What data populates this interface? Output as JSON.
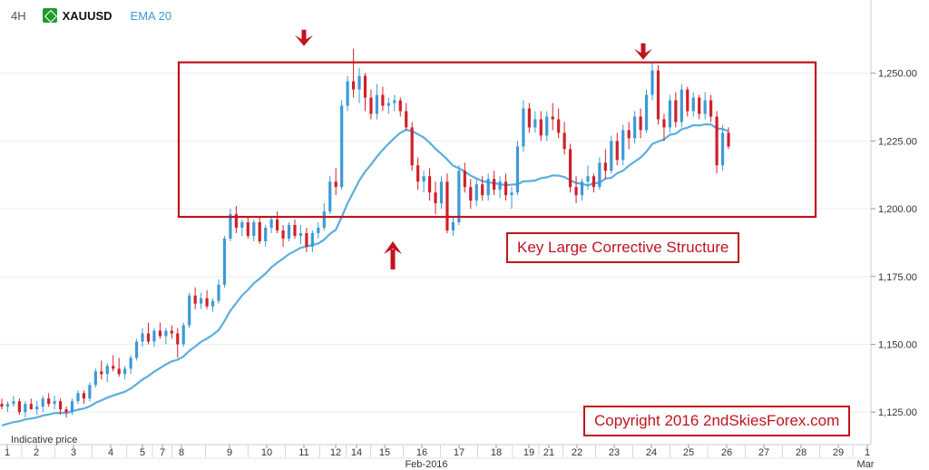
{
  "header": {
    "timeframe": "4H",
    "symbol": "XAUUSD",
    "indicator": "EMA 20"
  },
  "annotations": {
    "box_label": "Key Large Corrective Structure",
    "copyright": "Copyright 2016 2ndSkiesForex.com",
    "indicative": "Indicative price"
  },
  "colors": {
    "bull": "#3c9ad8",
    "bear": "#d0202b",
    "ema": "#5aaedf",
    "box": "#c0141c",
    "arrow": "#c0141c",
    "grid": "#eeeeee"
  },
  "chart_data": {
    "type": "candlestick",
    "y_ticks": [
      1125,
      1150,
      1175,
      1200,
      1225,
      1250
    ],
    "y_tick_labels": [
      "1,125.00",
      "1,150.00",
      "1,175.00",
      "1,200.00",
      "1,225.00",
      "1,250.00"
    ],
    "ylim": [
      1113,
      1277
    ],
    "x_ticks": [
      "1",
      "2",
      "3",
      "4",
      "5",
      "7",
      "8",
      "9",
      "10",
      "11",
      "12",
      "14",
      "15",
      "16",
      "17",
      "18",
      "19",
      "21",
      "22",
      "23",
      "24",
      "25",
      "26",
      "27",
      "28",
      "29",
      "1"
    ],
    "x_month_labels": [
      "Feb-2016",
      "Mar"
    ],
    "box_price_range": [
      1197,
      1254
    ],
    "arrows": [
      {
        "direction": "down",
        "price": 1258,
        "x_label": "11"
      },
      {
        "direction": "up",
        "price": 1190,
        "x_label": "15"
      },
      {
        "direction": "down",
        "price": 1253,
        "x_label": "24"
      }
    ],
    "candles": [
      [
        1128,
        1130,
        1126,
        1127
      ],
      [
        1127,
        1129,
        1125,
        1128
      ],
      [
        1128,
        1131,
        1127,
        1129
      ],
      [
        1129,
        1130,
        1124,
        1125
      ],
      [
        1125,
        1129,
        1123,
        1128
      ],
      [
        1128,
        1130,
        1126,
        1126
      ],
      [
        1126,
        1129,
        1124,
        1127
      ],
      [
        1127,
        1131,
        1125,
        1130
      ],
      [
        1130,
        1132,
        1127,
        1128
      ],
      [
        1128,
        1131,
        1126,
        1129
      ],
      [
        1129,
        1130,
        1124,
        1126
      ],
      [
        1126,
        1127,
        1123,
        1125
      ],
      [
        1125,
        1130,
        1124,
        1129
      ],
      [
        1129,
        1133,
        1128,
        1132
      ],
      [
        1132,
        1133,
        1128,
        1130
      ],
      [
        1130,
        1136,
        1129,
        1135
      ],
      [
        1135,
        1141,
        1134,
        1140
      ],
      [
        1140,
        1144,
        1137,
        1139
      ],
      [
        1139,
        1143,
        1136,
        1142
      ],
      [
        1142,
        1146,
        1140,
        1141
      ],
      [
        1141,
        1145,
        1138,
        1139
      ],
      [
        1139,
        1142,
        1137,
        1141
      ],
      [
        1141,
        1146,
        1139,
        1145
      ],
      [
        1145,
        1152,
        1144,
        1151
      ],
      [
        1151,
        1156,
        1149,
        1154
      ],
      [
        1154,
        1158,
        1150,
        1151
      ],
      [
        1151,
        1156,
        1149,
        1155
      ],
      [
        1155,
        1158,
        1152,
        1153
      ],
      [
        1153,
        1156,
        1150,
        1155
      ],
      [
        1155,
        1157,
        1152,
        1154
      ],
      [
        1154,
        1156,
        1145,
        1150
      ],
      [
        1150,
        1158,
        1149,
        1157
      ],
      [
        1157,
        1169,
        1156,
        1168
      ],
      [
        1168,
        1171,
        1163,
        1165
      ],
      [
        1165,
        1169,
        1163,
        1167
      ],
      [
        1167,
        1170,
        1163,
        1164
      ],
      [
        1164,
        1167,
        1162,
        1166
      ],
      [
        1166,
        1174,
        1165,
        1172
      ],
      [
        1172,
        1190,
        1171,
        1189
      ],
      [
        1189,
        1200,
        1188,
        1198
      ],
      [
        1198,
        1201,
        1191,
        1193
      ],
      [
        1193,
        1196,
        1190,
        1195
      ],
      [
        1195,
        1197,
        1189,
        1190
      ],
      [
        1190,
        1196,
        1188,
        1195
      ],
      [
        1195,
        1197,
        1187,
        1188
      ],
      [
        1188,
        1194,
        1186,
        1193
      ],
      [
        1193,
        1197,
        1191,
        1196
      ],
      [
        1196,
        1199,
        1191,
        1192
      ],
      [
        1192,
        1194,
        1186,
        1189
      ],
      [
        1189,
        1195,
        1188,
        1194
      ],
      [
        1194,
        1196,
        1189,
        1190
      ],
      [
        1190,
        1194,
        1187,
        1191
      ],
      [
        1191,
        1193,
        1184,
        1186
      ],
      [
        1186,
        1192,
        1184,
        1191
      ],
      [
        1191,
        1195,
        1189,
        1193
      ],
      [
        1193,
        1202,
        1192,
        1199
      ],
      [
        1199,
        1212,
        1198,
        1210
      ],
      [
        1210,
        1215,
        1205,
        1208
      ],
      [
        1208,
        1240,
        1207,
        1238
      ],
      [
        1238,
        1249,
        1236,
        1247
      ],
      [
        1247,
        1259,
        1241,
        1244
      ],
      [
        1244,
        1252,
        1239,
        1249
      ],
      [
        1249,
        1250,
        1236,
        1241
      ],
      [
        1241,
        1244,
        1233,
        1235
      ],
      [
        1235,
        1246,
        1233,
        1242
      ],
      [
        1242,
        1245,
        1236,
        1238
      ],
      [
        1238,
        1241,
        1235,
        1239
      ],
      [
        1239,
        1242,
        1236,
        1240
      ],
      [
        1240,
        1241,
        1234,
        1236
      ],
      [
        1236,
        1239,
        1229,
        1230
      ],
      [
        1230,
        1232,
        1214,
        1216
      ],
      [
        1216,
        1219,
        1207,
        1210
      ],
      [
        1210,
        1214,
        1206,
        1212
      ],
      [
        1212,
        1215,
        1203,
        1206
      ],
      [
        1206,
        1210,
        1198,
        1202
      ],
      [
        1202,
        1212,
        1200,
        1210
      ],
      [
        1210,
        1213,
        1191,
        1192
      ],
      [
        1192,
        1197,
        1190,
        1195
      ],
      [
        1195,
        1216,
        1194,
        1214
      ],
      [
        1214,
        1217,
        1206,
        1208
      ],
      [
        1208,
        1211,
        1200,
        1203
      ],
      [
        1203,
        1211,
        1201,
        1209
      ],
      [
        1209,
        1212,
        1203,
        1205
      ],
      [
        1205,
        1213,
        1203,
        1211
      ],
      [
        1211,
        1214,
        1205,
        1207
      ],
      [
        1207,
        1212,
        1204,
        1210
      ],
      [
        1210,
        1213,
        1203,
        1205
      ],
      [
        1205,
        1208,
        1200,
        1206
      ],
      [
        1206,
        1225,
        1205,
        1223
      ],
      [
        1223,
        1240,
        1221,
        1237
      ],
      [
        1237,
        1239,
        1228,
        1230
      ],
      [
        1230,
        1236,
        1228,
        1233
      ],
      [
        1233,
        1236,
        1225,
        1227
      ],
      [
        1227,
        1236,
        1225,
        1234
      ],
      [
        1234,
        1239,
        1229,
        1233
      ],
      [
        1233,
        1237,
        1226,
        1228
      ],
      [
        1228,
        1232,
        1220,
        1222
      ],
      [
        1222,
        1224,
        1206,
        1208
      ],
      [
        1208,
        1212,
        1202,
        1205
      ],
      [
        1205,
        1211,
        1203,
        1210
      ],
      [
        1210,
        1216,
        1207,
        1212
      ],
      [
        1212,
        1213,
        1206,
        1208
      ],
      [
        1208,
        1219,
        1207,
        1217
      ],
      [
        1217,
        1222,
        1211,
        1214
      ],
      [
        1214,
        1227,
        1213,
        1225
      ],
      [
        1225,
        1228,
        1216,
        1218
      ],
      [
        1218,
        1231,
        1216,
        1229
      ],
      [
        1229,
        1232,
        1222,
        1226
      ],
      [
        1226,
        1236,
        1224,
        1234
      ],
      [
        1234,
        1237,
        1226,
        1229
      ],
      [
        1229,
        1244,
        1228,
        1242
      ],
      [
        1242,
        1254,
        1240,
        1251
      ],
      [
        1251,
        1253,
        1231,
        1233
      ],
      [
        1233,
        1235,
        1225,
        1230
      ],
      [
        1230,
        1242,
        1228,
        1240
      ],
      [
        1240,
        1243,
        1230,
        1232
      ],
      [
        1232,
        1246,
        1230,
        1244
      ],
      [
        1244,
        1245,
        1234,
        1236
      ],
      [
        1236,
        1243,
        1234,
        1241
      ],
      [
        1241,
        1242,
        1233,
        1235
      ],
      [
        1235,
        1243,
        1233,
        1240
      ],
      [
        1240,
        1242,
        1232,
        1234
      ],
      [
        1234,
        1236,
        1213,
        1216
      ],
      [
        1216,
        1231,
        1214,
        1228
      ],
      [
        1228,
        1230,
        1222,
        1223
      ]
    ],
    "ema_20": [
      1120,
      1120.7,
      1121.3,
      1121.6,
      1122.3,
      1122.6,
      1123,
      1123.7,
      1124.1,
      1124.6,
      1124.7,
      1124.7,
      1125.2,
      1125.9,
      1126.3,
      1127.1,
      1128.4,
      1129.3,
      1130.3,
      1131.1,
      1131.8,
      1132.5,
      1133.7,
      1135.3,
      1137,
      1138.3,
      1139.9,
      1141.2,
      1142.6,
      1143.7,
      1144.3,
      1145.5,
      1147.6,
      1149.2,
      1150.9,
      1152.1,
      1153.5,
      1155.2,
      1158.6,
      1162.4,
      1165.2,
      1168,
      1170.1,
      1172.5,
      1174.2,
      1176.1,
      1178.4,
      1180.1,
      1181.6,
      1183.3,
      1184.4,
      1185.6,
      1186.1,
      1186.6,
      1187.2,
      1188.6,
      1190.7,
      1192.3,
      1197,
      1202,
      1206.2,
      1210.4,
      1213.7,
      1216.3,
      1219.2,
      1221.7,
      1224,
      1226.1,
      1228,
      1229.1,
      1228.6,
      1227.5,
      1226.3,
      1224.4,
      1222.1,
      1220.2,
      1218.2,
      1215.9,
      1214.9,
      1213.7,
      1212.2,
      1211.2,
      1210.2,
      1209.8,
      1209.4,
      1209.1,
      1208.7,
      1208.9,
      1209,
      1210.1,
      1210.2,
      1210.4,
      1211.3,
      1211.6,
      1212.3,
      1212.2,
      1211.7,
      1210.5,
      1209.5,
      1209.2,
      1208.6,
      1209.4,
      1209.6,
      1211.1,
      1211.4,
      1213.1,
      1214,
      1215.9,
      1217.4,
      1218.9,
      1221.1,
      1223.9,
      1224.8,
      1225.6,
      1227.3,
      1227.7,
      1229.3,
      1229.9,
      1230.8,
      1230.7,
      1231.1,
      1231.1,
      1229.6,
      1229.4,
      1228.6
    ]
  }
}
